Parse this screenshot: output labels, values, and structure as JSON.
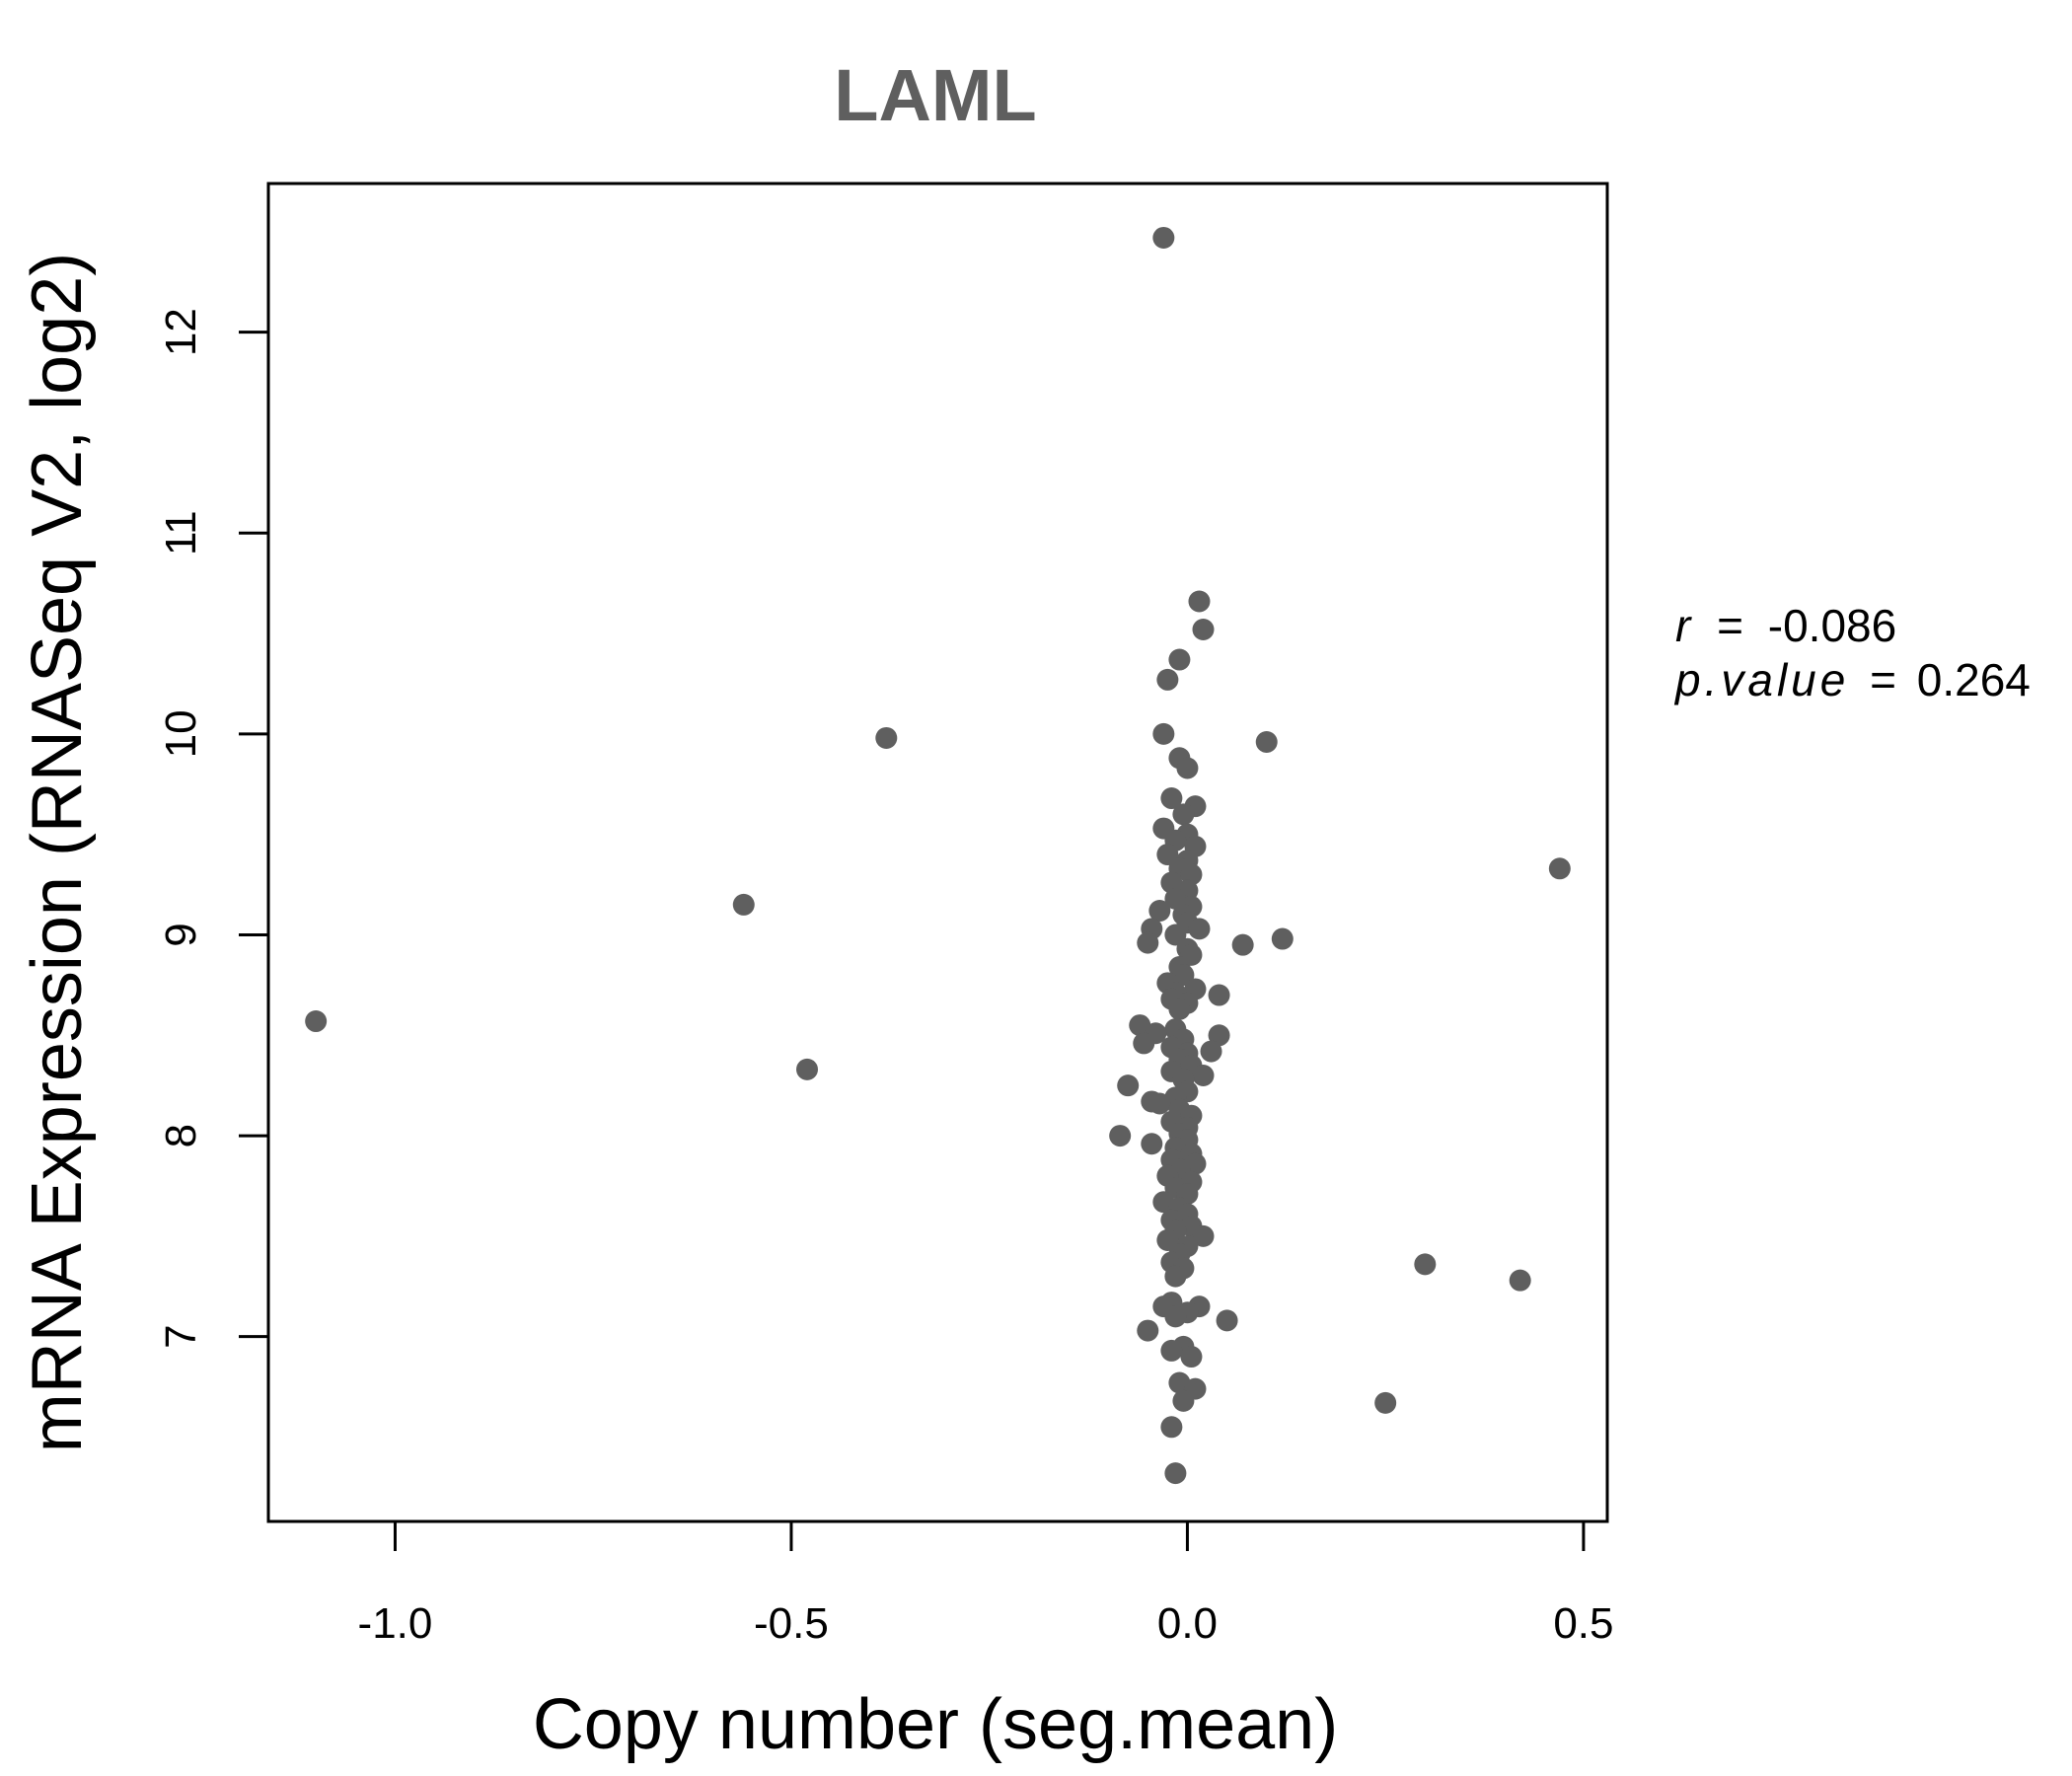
{
  "colors": {
    "title": "#5f5f5f",
    "points": "#5f5f5f",
    "axis": "#000000"
  },
  "chart_data": {
    "type": "scatter",
    "title": "LAML",
    "xlabel": "Copy number (seg.mean)",
    "ylabel": "mRNA Expression (RNASeq V2, log2)",
    "xlim": [
      -1.16,
      0.53
    ],
    "ylim": [
      6.08,
      12.74
    ],
    "xticks": [
      -1.0,
      -0.5,
      0.0,
      0.5
    ],
    "xtick_labels": [
      "-1.0",
      "-0.5",
      "0.0",
      "0.5"
    ],
    "yticks": [
      7,
      8,
      9,
      10,
      11,
      12
    ],
    "ytick_labels": [
      "7",
      "8",
      "9",
      "10",
      "11",
      "12"
    ],
    "grid": false,
    "annotations": {
      "r_label": "r",
      "r_value": "-0.086",
      "p_label": "p.value",
      "p_value": "0.264",
      "eq": "="
    },
    "points": [
      {
        "x": -1.1,
        "y": 8.57
      },
      {
        "x": -0.56,
        "y": 9.15
      },
      {
        "x": -0.48,
        "y": 8.33
      },
      {
        "x": -0.38,
        "y": 9.98
      },
      {
        "x": 0.1,
        "y": 9.96
      },
      {
        "x": 0.12,
        "y": 8.98
      },
      {
        "x": 0.07,
        "y": 8.95
      },
      {
        "x": 0.47,
        "y": 9.33
      },
      {
        "x": 0.3,
        "y": 7.36
      },
      {
        "x": 0.42,
        "y": 7.28
      },
      {
        "x": 0.25,
        "y": 6.67
      },
      {
        "x": 0.05,
        "y": 7.08
      },
      {
        "x": -0.03,
        "y": 12.47
      },
      {
        "x": 0.015,
        "y": 10.66
      },
      {
        "x": 0.02,
        "y": 10.52
      },
      {
        "x": -0.01,
        "y": 10.37
      },
      {
        "x": -0.025,
        "y": 10.27
      },
      {
        "x": -0.03,
        "y": 10.0
      },
      {
        "x": -0.01,
        "y": 9.88
      },
      {
        "x": 0.0,
        "y": 9.83
      },
      {
        "x": -0.02,
        "y": 9.68
      },
      {
        "x": 0.01,
        "y": 9.64
      },
      {
        "x": -0.005,
        "y": 9.6
      },
      {
        "x": -0.03,
        "y": 9.53
      },
      {
        "x": 0.0,
        "y": 9.5
      },
      {
        "x": -0.015,
        "y": 9.47
      },
      {
        "x": 0.01,
        "y": 9.44
      },
      {
        "x": -0.025,
        "y": 9.4
      },
      {
        "x": 0.0,
        "y": 9.37
      },
      {
        "x": -0.01,
        "y": 9.33
      },
      {
        "x": 0.005,
        "y": 9.3
      },
      {
        "x": -0.02,
        "y": 9.26
      },
      {
        "x": 0.0,
        "y": 9.22
      },
      {
        "x": -0.015,
        "y": 9.18
      },
      {
        "x": 0.005,
        "y": 9.14
      },
      {
        "x": -0.035,
        "y": 9.12
      },
      {
        "x": -0.005,
        "y": 9.1
      },
      {
        "x": 0.0,
        "y": 9.06
      },
      {
        "x": -0.045,
        "y": 9.03
      },
      {
        "x": 0.015,
        "y": 9.03
      },
      {
        "x": -0.015,
        "y": 9.0
      },
      {
        "x": -0.05,
        "y": 8.96
      },
      {
        "x": 0.0,
        "y": 8.93
      },
      {
        "x": 0.005,
        "y": 8.9
      },
      {
        "x": -0.01,
        "y": 8.84
      },
      {
        "x": -0.005,
        "y": 8.8
      },
      {
        "x": -0.025,
        "y": 8.76
      },
      {
        "x": 0.01,
        "y": 8.73
      },
      {
        "x": -0.015,
        "y": 8.71
      },
      {
        "x": 0.04,
        "y": 8.7
      },
      {
        "x": -0.02,
        "y": 8.68
      },
      {
        "x": 0.0,
        "y": 8.66
      },
      {
        "x": -0.01,
        "y": 8.63
      },
      {
        "x": -0.06,
        "y": 8.55
      },
      {
        "x": -0.015,
        "y": 8.53
      },
      {
        "x": -0.04,
        "y": 8.51
      },
      {
        "x": -0.005,
        "y": 8.48
      },
      {
        "x": 0.04,
        "y": 8.5
      },
      {
        "x": -0.055,
        "y": 8.46
      },
      {
        "x": -0.02,
        "y": 8.44
      },
      {
        "x": 0.0,
        "y": 8.41
      },
      {
        "x": 0.03,
        "y": 8.42
      },
      {
        "x": -0.01,
        "y": 8.38
      },
      {
        "x": 0.005,
        "y": 8.35
      },
      {
        "x": -0.02,
        "y": 8.32
      },
      {
        "x": 0.02,
        "y": 8.3
      },
      {
        "x": -0.005,
        "y": 8.28
      },
      {
        "x": -0.075,
        "y": 8.25
      },
      {
        "x": 0.0,
        "y": 8.22
      },
      {
        "x": -0.015,
        "y": 8.19
      },
      {
        "x": -0.045,
        "y": 8.17
      },
      {
        "x": -0.035,
        "y": 8.16
      },
      {
        "x": -0.01,
        "y": 8.13
      },
      {
        "x": 0.005,
        "y": 8.1
      },
      {
        "x": -0.02,
        "y": 8.07
      },
      {
        "x": 0.0,
        "y": 8.04
      },
      {
        "x": -0.085,
        "y": 8.0
      },
      {
        "x": -0.01,
        "y": 8.01
      },
      {
        "x": 0.0,
        "y": 7.98
      },
      {
        "x": -0.045,
        "y": 7.96
      },
      {
        "x": -0.015,
        "y": 7.94
      },
      {
        "x": 0.005,
        "y": 7.91
      },
      {
        "x": -0.02,
        "y": 7.88
      },
      {
        "x": 0.01,
        "y": 7.86
      },
      {
        "x": -0.01,
        "y": 7.83
      },
      {
        "x": -0.025,
        "y": 7.8
      },
      {
        "x": 0.005,
        "y": 7.77
      },
      {
        "x": -0.015,
        "y": 7.74
      },
      {
        "x": 0.0,
        "y": 7.71
      },
      {
        "x": -0.03,
        "y": 7.67
      },
      {
        "x": -0.01,
        "y": 7.64
      },
      {
        "x": 0.0,
        "y": 7.61
      },
      {
        "x": -0.02,
        "y": 7.58
      },
      {
        "x": 0.005,
        "y": 7.55
      },
      {
        "x": -0.015,
        "y": 7.53
      },
      {
        "x": 0.02,
        "y": 7.5
      },
      {
        "x": -0.025,
        "y": 7.48
      },
      {
        "x": 0.0,
        "y": 7.45
      },
      {
        "x": -0.01,
        "y": 7.41
      },
      {
        "x": -0.02,
        "y": 7.37
      },
      {
        "x": -0.005,
        "y": 7.34
      },
      {
        "x": -0.015,
        "y": 7.3
      },
      {
        "x": -0.02,
        "y": 7.17
      },
      {
        "x": -0.03,
        "y": 7.15
      },
      {
        "x": 0.015,
        "y": 7.15
      },
      {
        "x": 0.0,
        "y": 7.12
      },
      {
        "x": -0.015,
        "y": 7.1
      },
      {
        "x": -0.05,
        "y": 7.03
      },
      {
        "x": -0.005,
        "y": 6.95
      },
      {
        "x": -0.02,
        "y": 6.93
      },
      {
        "x": 0.005,
        "y": 6.9
      },
      {
        "x": -0.01,
        "y": 6.77
      },
      {
        "x": 0.01,
        "y": 6.74
      },
      {
        "x": -0.005,
        "y": 6.68
      },
      {
        "x": -0.02,
        "y": 6.55
      },
      {
        "x": -0.015,
        "y": 6.32
      }
    ]
  }
}
